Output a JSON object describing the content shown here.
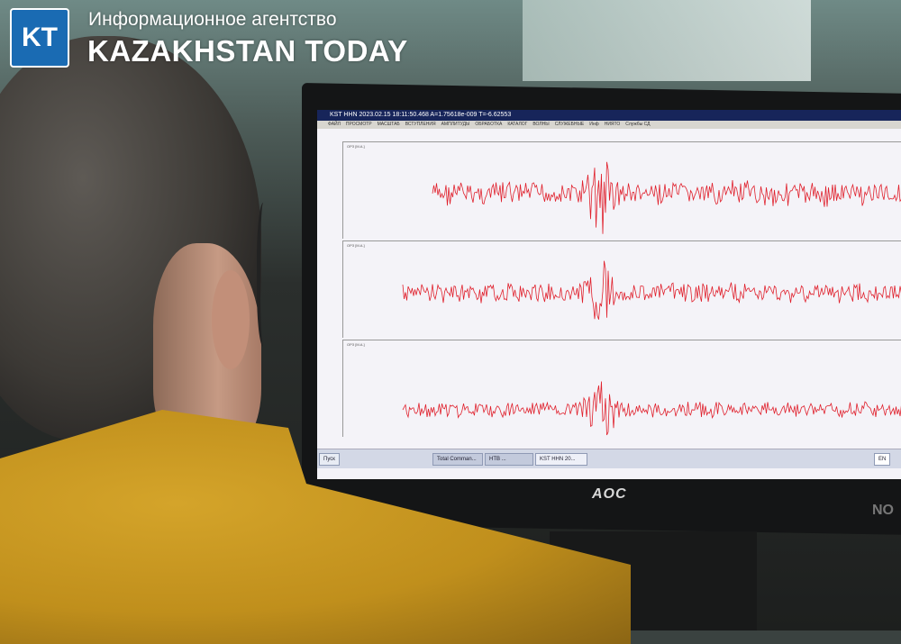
{
  "logo": {
    "mark": "KT",
    "tagline": "Информационное агентство",
    "name": "KAZAKHSTAN TODAY",
    "color": "#1a6bb3"
  },
  "screen": {
    "title": "KST HHN 2023.02.15 18:11:50.468 A=1.75618e-009 T=-6.62553",
    "menu": [
      "ФАЙЛ",
      "ПРОСМОТР",
      "МАСШТАБ",
      "ВСТУПЛЕНИЯ",
      "АМПЛИТУДЫ",
      "ОБРАБОТКА",
      "КАТАЛОГ",
      "ВОЛНЫ",
      "СЛУЖЕБНЫЕ",
      "Инф",
      "НИЯТО",
      "Службы СД"
    ],
    "panels": [
      {
        "label": "ОРЗ [М.А.]"
      },
      {
        "label": "ОРЗ [М.А.]"
      },
      {
        "label": "ОРЗ [М.А.]"
      }
    ],
    "trace_color": "#e0202c",
    "taskbar": {
      "start": "Пуск",
      "items": [
        "Total Comman...",
        "HTB ...",
        "KST HHN 20..."
      ],
      "lang": "EN"
    }
  },
  "monitor": {
    "brand": "AOC",
    "brand2": "NO"
  }
}
